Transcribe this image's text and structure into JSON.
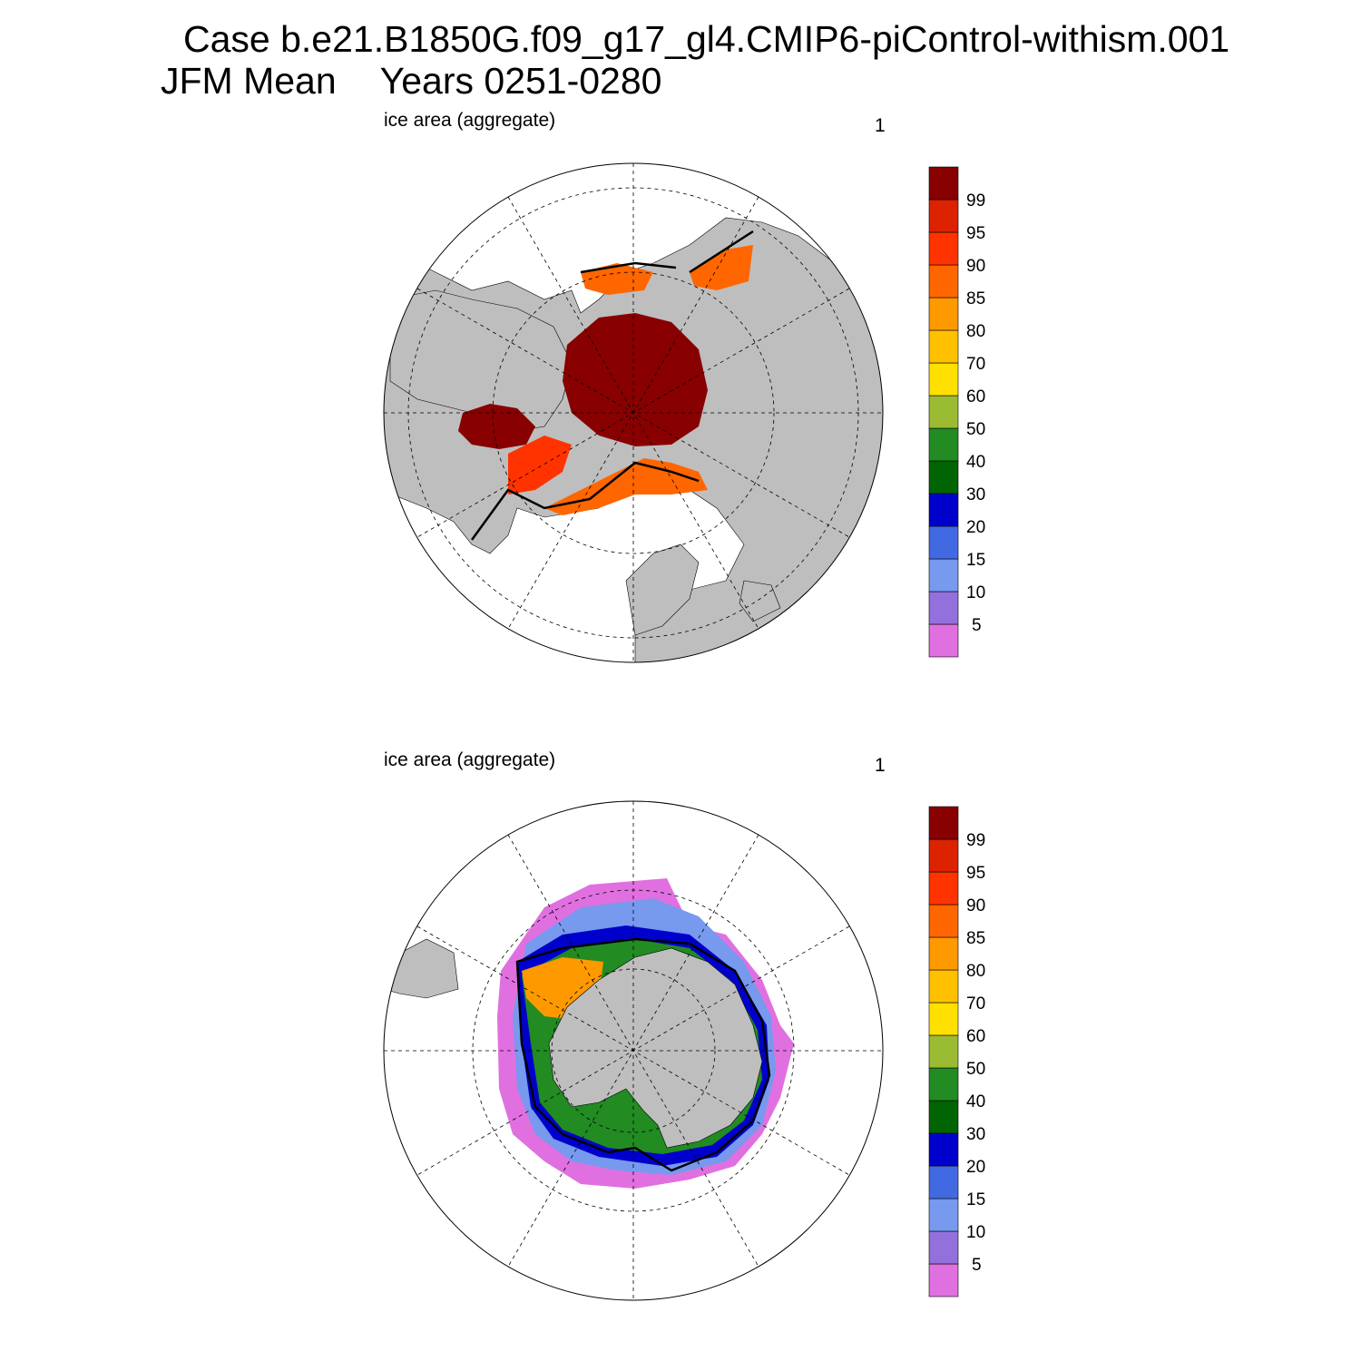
{
  "title": {
    "case": "Case b.e21.B1850G.f09_g17_gl4.CMIP6-piControl-withism.001",
    "season": "JFM Mean",
    "years": "Years 0251-0280"
  },
  "panels": [
    {
      "id": "north",
      "left_label": "ice area  (aggregate)",
      "right_label": "1"
    },
    {
      "id": "south",
      "left_label": "ice area  (aggregate)",
      "right_label": "1"
    }
  ],
  "colorbar": {
    "labels": [
      "5",
      "10",
      "15",
      "20",
      "30",
      "40",
      "50",
      "60",
      "70",
      "80",
      "85",
      "90",
      "95",
      "99"
    ],
    "colors": [
      "#e070e0",
      "#9370db",
      "#7799ee",
      "#4169e1",
      "#0000cd",
      "#006400",
      "#228b22",
      "#9bbb33",
      "#ffe000",
      "#ffc000",
      "#ff9900",
      "#ff6600",
      "#ff3300",
      "#dd2200",
      "#880000"
    ]
  },
  "styles": {
    "land": "#bebebe",
    "ocean": "#ffffff",
    "edge_contour": "#000000"
  }
}
